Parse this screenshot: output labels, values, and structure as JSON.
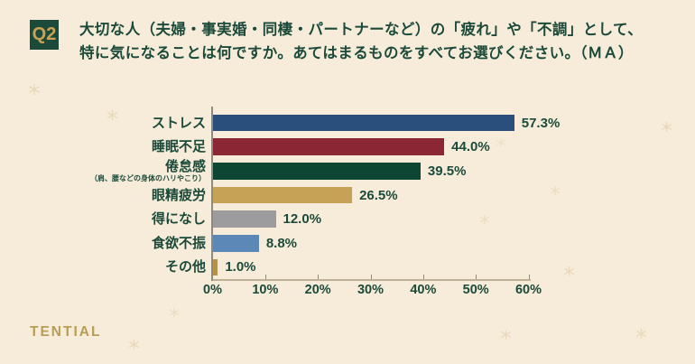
{
  "question": {
    "badge": "Q2",
    "title_line1": "大切な人（夫婦・事実婚・同棲・パートナーなど）の「疲れ」や「不調」として、",
    "title_line2": "特に気になることは何ですか。あてはまるものをすべてお選びください。（ＭＡ）"
  },
  "chart_data": {
    "type": "bar",
    "orientation": "horizontal",
    "title": "",
    "categories": [
      "ストレス",
      "睡眠不足",
      "倦怠感",
      "眼精疲労",
      "得になし",
      "食欲不振",
      "その他"
    ],
    "category_notes": [
      "",
      "",
      "（肩、腰などの身体のハリやこり）",
      "",
      "",
      "",
      ""
    ],
    "values": [
      57.3,
      44.0,
      39.5,
      26.5,
      12.0,
      8.8,
      1.0
    ],
    "value_labels": [
      "57.3%",
      "44.0%",
      "39.5%",
      "26.5%",
      "12.0%",
      "8.8%",
      "1.0%"
    ],
    "bar_colors": [
      "#2a4f7d",
      "#8b2634",
      "#0e4634",
      "#c6a257",
      "#9c9c9e",
      "#5c88b7",
      "#b6914a"
    ],
    "x_ticks": [
      "0%",
      "10%",
      "20%",
      "30%",
      "40%",
      "50%",
      "60%"
    ],
    "x_tick_values": [
      0,
      10,
      20,
      30,
      40,
      50,
      60
    ],
    "xlim": [
      0,
      60
    ],
    "xlabel": "",
    "ylabel": "",
    "grid": false,
    "legend": false
  },
  "footer": {
    "brand": "TENTIAL"
  },
  "colors": {
    "background": "#f6ecd9",
    "text_green": "#1c4a3a",
    "badge_bg": "#1b4a3b",
    "badge_text": "#c9a353",
    "brand_gold": "#b99c55",
    "star": "#e8d9ba",
    "axis_line": "#bdb094",
    "axis_vertical": "#8d8b80"
  }
}
